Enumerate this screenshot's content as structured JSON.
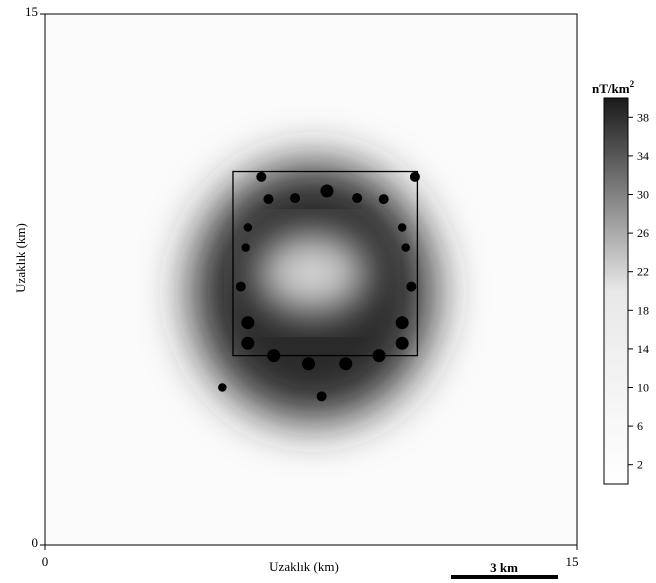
{
  "chart_data": {
    "type": "heatmap",
    "xlabel": "Uzaklık (km)",
    "ylabel": "Uzaklık (km)",
    "xlim": [
      0,
      15
    ],
    "ylim": [
      0,
      15
    ],
    "x_ticks": [
      "0",
      "15"
    ],
    "y_ticks": [
      "0",
      "15"
    ],
    "colorbar": {
      "title": "nT/km",
      "title_superscript": "2",
      "range": [
        0,
        40
      ],
      "ticks": [
        2,
        6,
        10,
        14,
        18,
        22,
        26,
        30,
        34,
        38
      ],
      "colors": {
        "low": "#ffffff",
        "high": "#1a1a1a"
      }
    },
    "scale_bar": {
      "label": "3 km",
      "length_km": 3
    },
    "square_outline": {
      "x": [
        5.3,
        10.5
      ],
      "y": [
        5.35,
        10.55
      ]
    },
    "anomaly": {
      "center": [
        7.9,
        7.5
      ],
      "body": [
        5.3,
        10.5,
        5.35,
        10.55
      ],
      "ring_peak": 40,
      "core_value": 22
    },
    "points": [
      {
        "x": 6.1,
        "y": 10.4,
        "r": 1
      },
      {
        "x": 10.43,
        "y": 10.4,
        "r": 1
      },
      {
        "x": 6.3,
        "y": 9.77,
        "r": 1
      },
      {
        "x": 7.05,
        "y": 9.8,
        "r": 1
      },
      {
        "x": 7.95,
        "y": 10.0,
        "r": 1.3
      },
      {
        "x": 8.8,
        "y": 9.8,
        "r": 1
      },
      {
        "x": 9.55,
        "y": 9.77,
        "r": 1
      },
      {
        "x": 5.72,
        "y": 8.97,
        "r": 0.85
      },
      {
        "x": 10.07,
        "y": 8.97,
        "r": 0.85
      },
      {
        "x": 5.66,
        "y": 8.4,
        "r": 0.85
      },
      {
        "x": 10.17,
        "y": 8.4,
        "r": 0.85
      },
      {
        "x": 5.52,
        "y": 7.3,
        "r": 1
      },
      {
        "x": 10.33,
        "y": 7.3,
        "r": 1
      },
      {
        "x": 5.72,
        "y": 6.28,
        "r": 1.3
      },
      {
        "x": 10.07,
        "y": 6.28,
        "r": 1.3
      },
      {
        "x": 5.72,
        "y": 5.7,
        "r": 1.3
      },
      {
        "x": 10.07,
        "y": 5.7,
        "r": 1.3
      },
      {
        "x": 6.45,
        "y": 5.35,
        "r": 1.3
      },
      {
        "x": 7.43,
        "y": 5.12,
        "r": 1.3
      },
      {
        "x": 8.48,
        "y": 5.12,
        "r": 1.3
      },
      {
        "x": 9.42,
        "y": 5.35,
        "r": 1.3
      },
      {
        "x": 5.0,
        "y": 4.45,
        "r": 0.85
      },
      {
        "x": 7.8,
        "y": 4.2,
        "r": 1
      }
    ]
  }
}
